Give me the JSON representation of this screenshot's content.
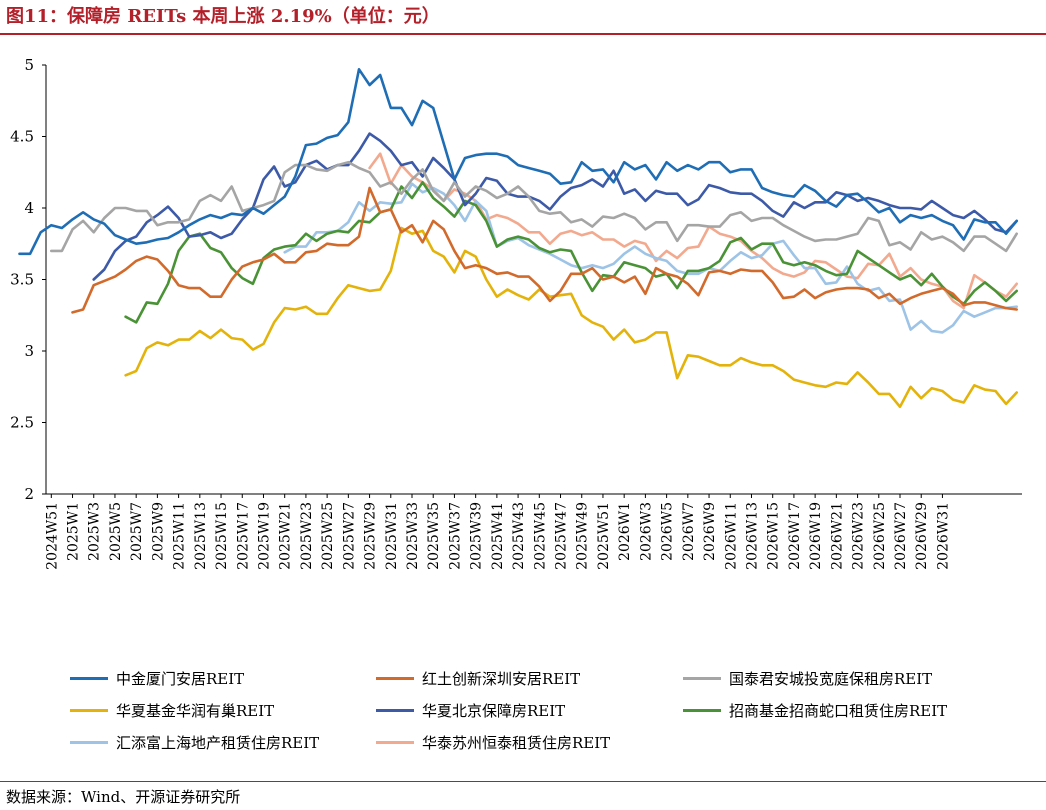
{
  "title": "图11：保障房 REITs 本周上涨 2.19%（单位：元）",
  "source": "数据来源：Wind、开源证券研究所",
  "chart_data": {
    "type": "line",
    "ylim": [
      2,
      5
    ],
    "yticks": [
      2,
      2.5,
      3,
      3.5,
      4,
      4.5,
      5
    ],
    "ytick_labels": [
      "2",
      "2.5",
      "3",
      "3.5",
      "4",
      "4.5",
      "5"
    ],
    "grid": false,
    "legend_position": "bottom",
    "x_tick_labels": [
      "2024W51",
      "2025W1",
      "2025W3",
      "2025W5",
      "2025W7",
      "2025W9",
      "2025W11",
      "2025W13",
      "2025W15",
      "2025W17",
      "2025W19",
      "2025W21",
      "2025W23",
      "2025W25",
      "2025W27",
      "2025W29",
      "2025W31",
      "2025W33",
      "2025W35",
      "2025W37",
      "2025W39",
      "2025W41",
      "2025W43",
      "2025W45",
      "2025W47",
      "2025W49",
      "2025W51",
      "2026W1",
      "2026W3",
      "2026W5",
      "2026W7",
      "2026W9",
      "2026W11",
      "2026W13",
      "2026W15",
      "2026W17",
      "2026W19",
      "2026W21",
      "2026W23",
      "2026W25",
      "2026W27",
      "2026W29",
      "2026W31"
    ],
    "series": [
      {
        "name": "中金厦门安居REIT",
        "color": "#1f6db5",
        "values": [
          3.68,
          3.68,
          3.83,
          3.88,
          3.86,
          3.92,
          3.97,
          3.92,
          3.89,
          3.81,
          3.78,
          3.75,
          3.76,
          3.78,
          3.79,
          3.83,
          3.88,
          3.92,
          3.95,
          3.93,
          3.96,
          3.95,
          4.0,
          3.96,
          4.02,
          4.08,
          4.22,
          4.44,
          4.45,
          4.49,
          4.51,
          4.6,
          4.97,
          4.86,
          4.93,
          4.7,
          4.7,
          4.58,
          4.75,
          4.7,
          4.45,
          4.2,
          4.35,
          4.37,
          4.38,
          4.38,
          4.36,
          4.3,
          4.28,
          4.26,
          4.24,
          4.17,
          4.18,
          4.32,
          4.26,
          4.27,
          4.18,
          4.32,
          4.27,
          4.3,
          4.2,
          4.32,
          4.26,
          4.3,
          4.27,
          4.32,
          4.32,
          4.25,
          4.27,
          4.27,
          4.14,
          4.11,
          4.09,
          4.08,
          4.16,
          4.12,
          4.05,
          4.01,
          4.09,
          4.1,
          4.04,
          3.97,
          4.0,
          3.9,
          3.95,
          3.93,
          3.95,
          3.91,
          3.88,
          3.78,
          3.92,
          3.9,
          3.9,
          3.82,
          3.91
        ]
      },
      {
        "name": "红土创新深圳安居REIT",
        "color": "#d26a2c",
        "values": [
          3.27,
          3.29,
          3.46,
          3.49,
          3.52,
          3.57,
          3.63,
          3.66,
          3.64,
          3.56,
          3.46,
          3.44,
          3.44,
          3.38,
          3.38,
          3.5,
          3.59,
          3.62,
          3.64,
          3.68,
          3.62,
          3.62,
          3.69,
          3.7,
          3.75,
          3.74,
          3.74,
          3.8,
          4.14,
          3.97,
          3.99,
          3.83,
          3.88,
          3.76,
          3.91,
          3.85,
          3.7,
          3.58,
          3.6,
          3.58,
          3.54,
          3.55,
          3.52,
          3.52,
          3.45,
          3.35,
          3.42,
          3.54,
          3.54,
          3.58,
          3.5,
          3.52,
          3.48,
          3.52,
          3.4,
          3.58,
          3.54,
          3.52,
          3.47,
          3.39,
          3.55,
          3.56,
          3.54,
          3.57,
          3.56,
          3.56,
          3.48,
          3.37,
          3.38,
          3.43,
          3.37,
          3.41,
          3.43,
          3.44,
          3.44,
          3.43,
          3.37,
          3.4,
          3.33,
          3.37,
          3.4,
          3.42,
          3.44,
          3.4,
          3.32,
          3.34,
          3.34,
          3.32,
          3.3,
          3.29
        ]
      },
      {
        "name": "国泰君安城投宽庭保租房REIT",
        "color": "#a5a5a5",
        "values": [
          3.7,
          3.7,
          3.85,
          3.91,
          3.83,
          3.93,
          4.0,
          4.0,
          3.98,
          3.98,
          3.88,
          3.9,
          3.9,
          3.92,
          4.05,
          4.09,
          4.05,
          4.15,
          3.98,
          4.0,
          4.02,
          4.05,
          4.25,
          4.3,
          4.3,
          4.27,
          4.26,
          4.3,
          4.32,
          4.28,
          4.25,
          4.15,
          4.18,
          4.1,
          4.2,
          4.27,
          4.12,
          4.05,
          4.18,
          4.08,
          4.15,
          4.12,
          4.07,
          4.1,
          4.15,
          4.08,
          3.98,
          3.96,
          3.97,
          3.9,
          3.92,
          3.87,
          3.94,
          3.93,
          3.96,
          3.93,
          3.85,
          3.9,
          3.9,
          3.77,
          3.88,
          3.88,
          3.87,
          3.87,
          3.95,
          3.97,
          3.91,
          3.93,
          3.93,
          3.88,
          3.84,
          3.8,
          3.77,
          3.78,
          3.78,
          3.8,
          3.82,
          3.93,
          3.91,
          3.74,
          3.76,
          3.71,
          3.83,
          3.78,
          3.8,
          3.76,
          3.7,
          3.8,
          3.8,
          3.75,
          3.7,
          3.82
        ]
      },
      {
        "name": "华夏基金华润有巢REIT",
        "color": "#e3b30b",
        "values": [
          2.83,
          2.86,
          3.02,
          3.06,
          3.04,
          3.08,
          3.08,
          3.14,
          3.09,
          3.15,
          3.09,
          3.08,
          3.01,
          3.05,
          3.2,
          3.3,
          3.29,
          3.31,
          3.26,
          3.26,
          3.37,
          3.46,
          3.44,
          3.42,
          3.43,
          3.56,
          3.86,
          3.82,
          3.84,
          3.7,
          3.66,
          3.55,
          3.7,
          3.66,
          3.5,
          3.38,
          3.43,
          3.39,
          3.36,
          3.43,
          3.38,
          3.39,
          3.4,
          3.25,
          3.2,
          3.17,
          3.08,
          3.15,
          3.06,
          3.08,
          3.13,
          3.13,
          2.81,
          2.97,
          2.96,
          2.93,
          2.9,
          2.9,
          2.95,
          2.92,
          2.9,
          2.9,
          2.86,
          2.8,
          2.78,
          2.76,
          2.75,
          2.78,
          2.77,
          2.85,
          2.78,
          2.7,
          2.7,
          2.61,
          2.75,
          2.67,
          2.74,
          2.72,
          2.66,
          2.64,
          2.76,
          2.73,
          2.72,
          2.63,
          2.71
        ]
      },
      {
        "name": "华夏北京保障房REIT",
        "color": "#3d5aa8",
        "values": [
          3.5,
          3.57,
          3.7,
          3.77,
          3.8,
          3.9,
          3.95,
          4.01,
          3.93,
          3.8,
          3.81,
          3.83,
          3.79,
          3.82,
          3.92,
          4.0,
          4.2,
          4.29,
          4.15,
          4.18,
          4.3,
          4.33,
          4.27,
          4.3,
          4.3,
          4.4,
          4.52,
          4.47,
          4.4,
          4.3,
          4.32,
          4.22,
          4.35,
          4.28,
          4.2,
          4.02,
          4.1,
          4.21,
          4.19,
          4.1,
          4.08,
          4.08,
          4.05,
          3.99,
          4.08,
          4.14,
          4.16,
          4.2,
          4.15,
          4.26,
          4.1,
          4.13,
          4.05,
          4.12,
          4.1,
          4.1,
          4.02,
          4.06,
          4.16,
          4.14,
          4.11,
          4.1,
          4.1,
          4.05,
          3.98,
          3.94,
          4.04,
          4.0,
          4.04,
          4.04,
          4.11,
          4.09,
          4.05,
          4.07,
          4.05,
          4.02,
          4.0,
          4.0,
          3.99,
          4.05,
          4.0,
          3.95,
          3.93,
          3.98,
          3.92,
          3.85,
          3.83,
          3.91
        ]
      },
      {
        "name": "招商基金招商蛇口租赁住房REIT",
        "color": "#4a9236",
        "values": [
          3.24,
          3.2,
          3.34,
          3.33,
          3.47,
          3.7,
          3.8,
          3.82,
          3.72,
          3.69,
          3.58,
          3.51,
          3.47,
          3.65,
          3.71,
          3.73,
          3.74,
          3.82,
          3.77,
          3.82,
          3.84,
          3.83,
          3.91,
          3.9,
          3.97,
          3.99,
          4.15,
          4.07,
          4.18,
          4.07,
          4.01,
          3.94,
          4.05,
          4.02,
          3.91,
          3.73,
          3.78,
          3.8,
          3.78,
          3.72,
          3.69,
          3.71,
          3.7,
          3.55,
          3.42,
          3.53,
          3.52,
          3.62,
          3.6,
          3.58,
          3.52,
          3.54,
          3.44,
          3.56,
          3.56,
          3.58,
          3.63,
          3.76,
          3.79,
          3.71,
          3.75,
          3.75,
          3.62,
          3.6,
          3.62,
          3.6,
          3.56,
          3.53,
          3.54,
          3.7,
          3.65,
          3.6,
          3.55,
          3.5,
          3.53,
          3.46,
          3.54,
          3.45,
          3.38,
          3.33,
          3.42,
          3.48,
          3.42,
          3.35,
          3.42
        ]
      },
      {
        "name": "汇添富上海地产租赁住房REIT",
        "color": "#9dc3e6",
        "values": [
          3.69,
          3.73,
          3.73,
          3.83,
          3.83,
          3.84,
          3.9,
          4.04,
          3.98,
          4.04,
          4.03,
          4.04,
          4.17,
          4.11,
          4.14,
          4.1,
          4.02,
          3.91,
          4.05,
          3.98,
          3.73,
          3.77,
          3.79,
          3.74,
          3.71,
          3.68,
          3.64,
          3.6,
          3.58,
          3.6,
          3.58,
          3.61,
          3.68,
          3.73,
          3.68,
          3.65,
          3.63,
          3.56,
          3.54,
          3.54,
          3.58,
          3.56,
          3.63,
          3.69,
          3.65,
          3.67,
          3.75,
          3.77,
          3.67,
          3.58,
          3.58,
          3.47,
          3.48,
          3.59,
          3.47,
          3.42,
          3.44,
          3.35,
          3.36,
          3.15,
          3.21,
          3.14,
          3.13,
          3.18,
          3.28,
          3.24,
          3.27,
          3.3,
          3.3,
          3.31
        ]
      },
      {
        "name": "华泰苏州恒泰租赁住房REIT",
        "color": "#f2a98e",
        "values": [
          4.28,
          4.38,
          4.17,
          4.3,
          4.22,
          4.18,
          4.13,
          4.05,
          4.13,
          4.1,
          4.05,
          3.92,
          3.95,
          3.93,
          3.89,
          3.83,
          3.83,
          3.75,
          3.82,
          3.84,
          3.81,
          3.83,
          3.78,
          3.78,
          3.73,
          3.77,
          3.75,
          3.63,
          3.7,
          3.65,
          3.72,
          3.73,
          3.87,
          3.82,
          3.8,
          3.77,
          3.7,
          3.65,
          3.58,
          3.54,
          3.52,
          3.55,
          3.63,
          3.62,
          3.57,
          3.52,
          3.51,
          3.61,
          3.6,
          3.68,
          3.52,
          3.58,
          3.5,
          3.47,
          3.45,
          3.35,
          3.3,
          3.53,
          3.48,
          3.42,
          3.38,
          3.47
        ]
      }
    ]
  }
}
